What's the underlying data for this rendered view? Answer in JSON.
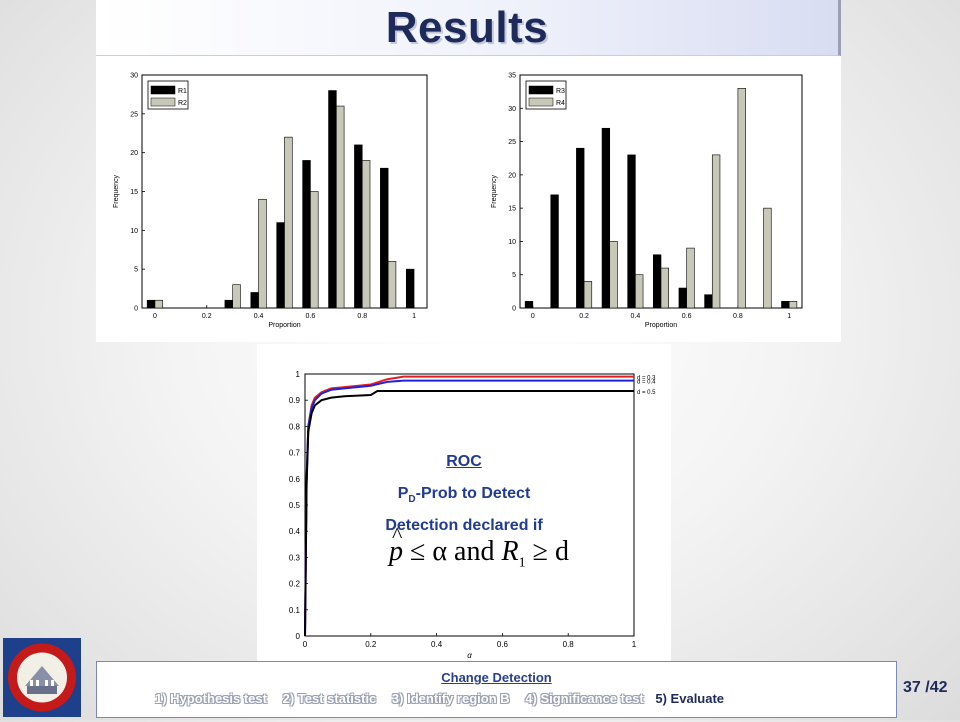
{
  "slide": {
    "title": "Results",
    "page_current": "37",
    "page_total": "/42",
    "colors": {
      "title": "#1d2a5a",
      "roc_text": "#1f3b95",
      "footer_link": "#2a3f8f",
      "seal_red": "#c41a1a",
      "seal_blue": "#1e3f8a"
    }
  },
  "roc_annotation": {
    "title": "ROC",
    "pd_main": "P",
    "pd_sub": "D",
    "pd_rest": "-Prob to Detect",
    "detection": "Detection declared if",
    "formula": {
      "p": "p",
      "p_hat": "^",
      "le1": "≤ α",
      "and": "and",
      "R": "R",
      "R_sub": "1",
      "le2": "≥ d"
    }
  },
  "footer": {
    "title": "Change Detection",
    "steps": [
      "1) Hypothesis test",
      "2) Test statistic",
      "3) Identify region B",
      "4) Significance test"
    ],
    "current_step": "5) Evaluate"
  },
  "seal": {
    "icon": "university-seal-icon"
  },
  "chart_data": [
    {
      "type": "bar",
      "xlabel": "Proportion",
      "ylabel": "Frequency",
      "xlim": [
        -0.05,
        1.05
      ],
      "ylim": [
        0,
        30
      ],
      "xticks": [
        "0",
        "0.2",
        "0.4",
        "0.6",
        "0.8",
        "1"
      ],
      "yticks": [
        "0",
        "5",
        "10",
        "15",
        "20",
        "25",
        "30"
      ],
      "legend_position": "top-left",
      "series": [
        {
          "name": "R1",
          "color": "#000000",
          "x": [
            0,
            0.3,
            0.4,
            0.5,
            0.6,
            0.7,
            0.8,
            0.9,
            1.0
          ],
          "values": [
            1,
            1,
            2,
            11,
            19,
            28,
            21,
            18,
            5
          ]
        },
        {
          "name": "R2",
          "color": "#c8c8b8",
          "x": [
            0,
            0.3,
            0.4,
            0.5,
            0.6,
            0.7,
            0.8,
            0.9
          ],
          "values": [
            1,
            3,
            14,
            22,
            15,
            26,
            19,
            6
          ]
        }
      ]
    },
    {
      "type": "bar",
      "xlabel": "Proportion",
      "ylabel": "Frequency",
      "xlim": [
        -0.05,
        1.05
      ],
      "ylim": [
        0,
        35
      ],
      "xticks": [
        "0",
        "0.2",
        "0.4",
        "0.6",
        "0.8",
        "1"
      ],
      "yticks": [
        "0",
        "5",
        "10",
        "15",
        "20",
        "25",
        "30",
        "35"
      ],
      "legend_position": "top-left",
      "series": [
        {
          "name": "R3",
          "color": "#000000",
          "x": [
            0,
            0.1,
            0.2,
            0.3,
            0.4,
            0.5,
            0.6,
            0.7,
            1.0
          ],
          "values": [
            1,
            17,
            24,
            27,
            23,
            8,
            3,
            2,
            1
          ]
        },
        {
          "name": "R4",
          "color": "#c8c8b8",
          "x": [
            0.2,
            0.3,
            0.4,
            0.5,
            0.6,
            0.7,
            0.8,
            0.9,
            1.0
          ],
          "values": [
            4,
            10,
            5,
            6,
            9,
            23,
            33,
            15,
            1
          ]
        }
      ]
    },
    {
      "type": "line",
      "xlabel": "α",
      "xlim": [
        0,
        1
      ],
      "ylim": [
        0,
        1
      ],
      "xticks": [
        "0",
        "0.2",
        "0.4",
        "0.6",
        "0.8",
        "1"
      ],
      "yticks": [
        "0",
        "0.1",
        "0.2",
        "0.3",
        "0.4",
        "0.5",
        "0.6",
        "0.7",
        "0.8",
        "0.9",
        "1"
      ],
      "legend_position": "top-right",
      "series": [
        {
          "name": "d = 0.3",
          "color": "#e02020",
          "x": [
            0,
            0.005,
            0.01,
            0.02,
            0.03,
            0.05,
            0.08,
            0.12,
            0.2,
            0.25,
            0.3,
            0.5,
            1.0
          ],
          "y": [
            0,
            0.6,
            0.8,
            0.88,
            0.91,
            0.93,
            0.945,
            0.95,
            0.96,
            0.98,
            0.99,
            0.99,
            0.99
          ]
        },
        {
          "name": "d = 0.4",
          "color": "#2020e0",
          "x": [
            0,
            0.005,
            0.01,
            0.02,
            0.03,
            0.05,
            0.08,
            0.12,
            0.2,
            0.25,
            0.3,
            0.5,
            1.0
          ],
          "y": [
            0,
            0.6,
            0.8,
            0.87,
            0.9,
            0.925,
            0.94,
            0.945,
            0.955,
            0.97,
            0.975,
            0.975,
            0.975
          ]
        },
        {
          "name": "d = 0.5",
          "color": "#000000",
          "x": [
            0,
            0.005,
            0.01,
            0.02,
            0.03,
            0.05,
            0.08,
            0.12,
            0.2,
            0.22,
            0.3,
            0.5,
            1.0
          ],
          "y": [
            0,
            0.58,
            0.78,
            0.85,
            0.88,
            0.9,
            0.91,
            0.915,
            0.92,
            0.935,
            0.935,
            0.935,
            0.935
          ]
        }
      ]
    }
  ]
}
